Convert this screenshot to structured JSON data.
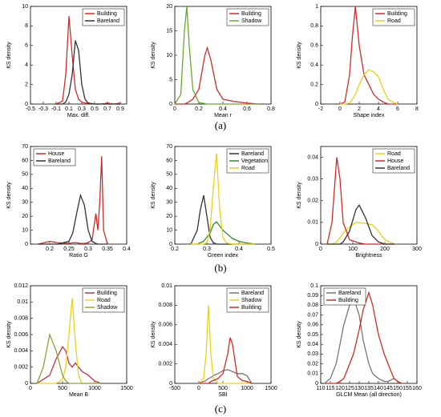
{
  "panel_labels": [
    "(a)",
    "(b)",
    "(c)"
  ],
  "chart_data": [
    {
      "type": "line",
      "xlabel": "Max. diff.",
      "ylabel": "KS density",
      "legend": "upper right",
      "xlim": [
        -0.5,
        1
      ],
      "xticks": [
        -0.5,
        -0.3,
        -0.1,
        0.1,
        0.3,
        0.5,
        0.7,
        0.9
      ],
      "ylim": [
        0,
        10
      ],
      "yticks": [
        0,
        2,
        4,
        6,
        8,
        10
      ],
      "x": [
        -0.1,
        0,
        0.05,
        0.1,
        0.15,
        0.2,
        0.25,
        0.3,
        0.35,
        0.4,
        0.5,
        0.6,
        0.7,
        0.8,
        0.9
      ],
      "series": [
        {
          "name": "Building",
          "color": "#d12a2a",
          "values": [
            0,
            0.3,
            3,
            9,
            5,
            1.5,
            0.5,
            0.2,
            0.1,
            0.1,
            0,
            0,
            0.1,
            0,
            0.1
          ]
        },
        {
          "name": "Bareland",
          "color": "#333333",
          "values": [
            0,
            0,
            0.2,
            1,
            3,
            6.5,
            5.5,
            2,
            0.5,
            0.1,
            0,
            0,
            0,
            0,
            0
          ]
        }
      ]
    },
    {
      "type": "line",
      "xlabel": "Mean r",
      "ylabel": "KS density",
      "legend": "upper right",
      "xlim": [
        0,
        0.8
      ],
      "xticks": [
        0,
        0.2,
        0.4,
        0.6,
        0.8
      ],
      "ylim": [
        0,
        20
      ],
      "yticks": [
        0,
        5,
        10,
        15,
        20
      ],
      "x": [
        0,
        0.05,
        0.08,
        0.1,
        0.12,
        0.15,
        0.2,
        0.25,
        0.27,
        0.3,
        0.35,
        0.4,
        0.5,
        0.6,
        0.7
      ],
      "series": [
        {
          "name": "Building",
          "color": "#d12a2a",
          "values": [
            0,
            0,
            0,
            0.2,
            0.5,
            1,
            3,
            10,
            11.5,
            9,
            3,
            1,
            0.5,
            0.2,
            0
          ]
        },
        {
          "name": "Shadow",
          "color": "#6aa82a",
          "values": [
            0,
            2,
            15,
            20,
            12,
            3,
            0.3,
            0.1,
            0,
            0,
            0,
            0,
            0,
            0,
            0
          ]
        }
      ]
    },
    {
      "type": "line",
      "xlabel": "Shape index",
      "ylabel": "KS density",
      "legend": "upper right",
      "xlim": [
        -2,
        8
      ],
      "xticks": [
        -2,
        0,
        2,
        4,
        6,
        8
      ],
      "ylim": [
        0,
        1
      ],
      "yticks": [
        0,
        0.2,
        0.4,
        0.6,
        0.8,
        1
      ],
      "x": [
        0,
        0.5,
        1,
        1.3,
        1.6,
        2,
        2.5,
        3,
        3.5,
        4,
        4.5,
        5,
        5.5,
        6
      ],
      "series": [
        {
          "name": "Building",
          "color": "#d12a2a",
          "values": [
            0,
            0.02,
            0.3,
            0.7,
            1.0,
            0.6,
            0.3,
            0.2,
            0.1,
            0.05,
            0.02,
            0,
            0,
            0
          ]
        },
        {
          "name": "Road",
          "color": "#e8d21a",
          "values": [
            0,
            0,
            0.01,
            0.05,
            0.1,
            0.2,
            0.3,
            0.35,
            0.33,
            0.28,
            0.15,
            0.05,
            0.02,
            0
          ]
        }
      ]
    },
    {
      "type": "line",
      "xlabel": "Ratio G",
      "ylabel": "KS density",
      "legend": "upper left",
      "xlim": [
        0.15,
        0.4
      ],
      "xticks": [
        0.2,
        0.25,
        0.3,
        0.35,
        0.4
      ],
      "ylim": [
        0,
        70
      ],
      "yticks": [
        0,
        10,
        20,
        30,
        40,
        50,
        60,
        70
      ],
      "x": [
        0.17,
        0.2,
        0.22,
        0.25,
        0.26,
        0.27,
        0.28,
        0.29,
        0.3,
        0.31,
        0.32,
        0.325,
        0.33,
        0.335,
        0.34,
        0.35
      ],
      "series": [
        {
          "name": "House",
          "color": "#d12a2a",
          "values": [
            0,
            2,
            1,
            0.5,
            1,
            1,
            0.5,
            0.5,
            1,
            3,
            22,
            10,
            30,
            63,
            10,
            0
          ]
        },
        {
          "name": "Bareland",
          "color": "#333333",
          "values": [
            0,
            0,
            0,
            2,
            8,
            22,
            35,
            28,
            10,
            2,
            0.5,
            0,
            0,
            0,
            0,
            0
          ]
        }
      ]
    },
    {
      "type": "line",
      "xlabel": "Green index",
      "ylabel": "KS density",
      "legend": "upper right",
      "xlim": [
        0.2,
        0.5
      ],
      "xticks": [
        0.2,
        0.3,
        0.4,
        0.5
      ],
      "ylim": [
        0,
        70
      ],
      "yticks": [
        0,
        10,
        20,
        30,
        40,
        50,
        60,
        70
      ],
      "x": [
        0.25,
        0.27,
        0.28,
        0.29,
        0.3,
        0.31,
        0.32,
        0.33,
        0.34,
        0.35,
        0.36,
        0.38,
        0.4,
        0.42,
        0.45
      ],
      "series": [
        {
          "name": "Bareland",
          "color": "#333333",
          "values": [
            0,
            10,
            25,
            35,
            20,
            5,
            1,
            0,
            0,
            0,
            0,
            0,
            0,
            0,
            0
          ]
        },
        {
          "name": "Vegetation",
          "color": "#2e8b2e",
          "values": [
            0,
            0,
            1,
            2,
            5,
            8,
            14,
            16,
            13,
            10,
            8,
            4,
            2,
            1,
            0
          ]
        },
        {
          "name": "Road",
          "color": "#e8d21a",
          "values": [
            0,
            0,
            0,
            0,
            1,
            10,
            40,
            65,
            25,
            5,
            1,
            0,
            0,
            0,
            0
          ]
        }
      ]
    },
    {
      "type": "line",
      "xlabel": "Brightness",
      "ylabel": "KS density",
      "legend": "upper right",
      "xlim": [
        0,
        300
      ],
      "xticks": [
        0,
        100,
        200,
        300
      ],
      "ylim": [
        0,
        0.045
      ],
      "yticks": [
        0,
        0.01,
        0.02,
        0.03,
        0.04
      ],
      "x": [
        20,
        35,
        50,
        60,
        70,
        90,
        110,
        120,
        140,
        160,
        180,
        200,
        230
      ],
      "series": [
        {
          "name": "Road",
          "color": "#e8d21a",
          "values": [
            0,
            0,
            0.001,
            0.003,
            0.005,
            0.008,
            0.01,
            0.01,
            0.0095,
            0.009,
            0.006,
            0.002,
            0
          ]
        },
        {
          "name": "House",
          "color": "#d12a2a",
          "values": [
            0,
            0.01,
            0.04,
            0.03,
            0.01,
            0.002,
            0.001,
            0.0005,
            0,
            0,
            0,
            0,
            0
          ]
        },
        {
          "name": "Bareland",
          "color": "#333333",
          "values": [
            0,
            0,
            0,
            0,
            0.001,
            0.006,
            0.016,
            0.018,
            0.012,
            0.004,
            0.001,
            0,
            0
          ]
        }
      ]
    },
    {
      "type": "line",
      "xlabel": "Mean B",
      "ylabel": "KS density",
      "legend": "upper right",
      "xlim": [
        0,
        1500
      ],
      "xticks": [
        0,
        500,
        1000,
        1500
      ],
      "ylim": [
        0,
        0.012
      ],
      "yticks": [
        0,
        0.002,
        0.004,
        0.006,
        0.008,
        0.01,
        0.012
      ],
      "x": [
        100,
        200,
        300,
        400,
        500,
        550,
        600,
        650,
        700,
        750,
        800,
        900,
        1000,
        1100
      ],
      "series": [
        {
          "name": "Building",
          "color": "#b8344a",
          "values": [
            0,
            0.0005,
            0.001,
            0.003,
            0.0045,
            0.004,
            0.0025,
            0.002,
            0.0025,
            0.002,
            0.0015,
            0.001,
            0.0003,
            0
          ]
        },
        {
          "name": "Road",
          "color": "#e8d21a",
          "values": [
            0,
            0,
            0,
            0,
            0.0005,
            0.002,
            0.006,
            0.0105,
            0.005,
            0.001,
            0,
            0,
            0,
            0
          ]
        },
        {
          "name": "Shadow",
          "color": "#8da33a",
          "values": [
            0,
            0.002,
            0.006,
            0.004,
            0.001,
            0.0003,
            0,
            0,
            0,
            0,
            0,
            0,
            0,
            0
          ]
        }
      ]
    },
    {
      "type": "line",
      "xlabel": "SBI",
      "ylabel": "KS density",
      "legend": "upper right",
      "xlim": [
        -500,
        1500
      ],
      "xticks": [
        -500,
        0,
        500,
        1000,
        1500
      ],
      "ylim": [
        0,
        0.01
      ],
      "yticks": [
        0,
        0.002,
        0.004,
        0.006,
        0.008,
        0.01
      ],
      "x": [
        0,
        100,
        150,
        200,
        250,
        300,
        400,
        500,
        600,
        650,
        700,
        800,
        900,
        1000,
        1100
      ],
      "series": [
        {
          "name": "Bareland",
          "color": "#777777",
          "values": [
            0,
            0.0002,
            0.0003,
            0.0005,
            0.0006,
            0.0008,
            0.001,
            0.0013,
            0.0014,
            0.0013,
            0.0012,
            0.001,
            0.001,
            0.0008,
            0
          ]
        },
        {
          "name": "Shadow",
          "color": "#e8d21a",
          "values": [
            0,
            0.0005,
            0.003,
            0.008,
            0.003,
            0.0005,
            0,
            0,
            0,
            0,
            0,
            0,
            0,
            0,
            0
          ]
        },
        {
          "name": "Building",
          "color": "#d12a2a",
          "values": [
            0,
            0,
            0,
            0,
            0.0002,
            0.0003,
            0.0005,
            0.001,
            0.003,
            0.0047,
            0.004,
            0.0007,
            0.0003,
            0.0002,
            0
          ]
        }
      ]
    },
    {
      "type": "line",
      "xlabel": "GLCM Mean (all direction)",
      "ylabel": "KS density",
      "legend": "upper left",
      "xlim": [
        110,
        160
      ],
      "xticks": [
        110,
        115,
        120,
        125,
        130,
        135,
        140,
        145,
        150,
        155,
        160
      ],
      "ylim": [
        0,
        0.1
      ],
      "yticks": [
        0,
        0.01,
        0.02,
        0.03,
        0.04,
        0.05,
        0.06,
        0.07,
        0.08,
        0.09,
        0.1
      ],
      "x": [
        112,
        115,
        118,
        120,
        122,
        125,
        127,
        130,
        132,
        135,
        137,
        140,
        143,
        145,
        148,
        150,
        152
      ],
      "series": [
        {
          "name": "Bareland",
          "color": "#777777",
          "values": [
            0,
            0.005,
            0.02,
            0.04,
            0.06,
            0.08,
            0.088,
            0.07,
            0.045,
            0.02,
            0.01,
            0.005,
            0.002,
            0.002,
            0.005,
            0.002,
            0
          ]
        },
        {
          "name": "Building",
          "color": "#d12a2a",
          "values": [
            0,
            0,
            0,
            0.002,
            0.005,
            0.02,
            0.03,
            0.055,
            0.075,
            0.093,
            0.08,
            0.05,
            0.03,
            0.02,
            0.005,
            0.002,
            0
          ]
        }
      ]
    }
  ]
}
